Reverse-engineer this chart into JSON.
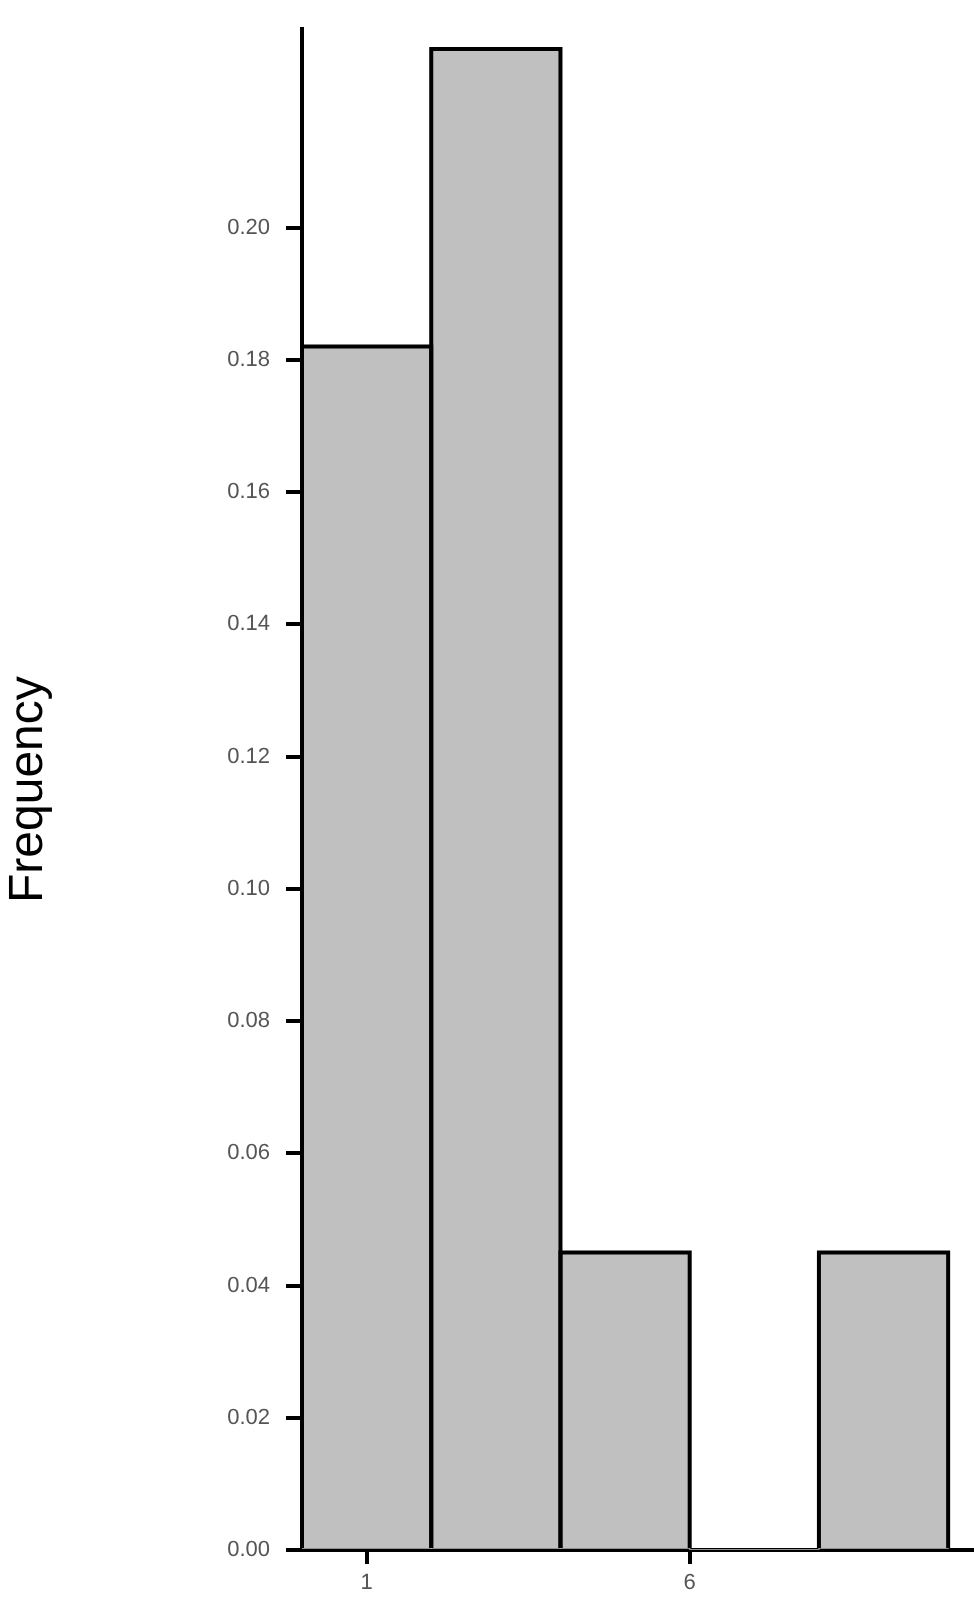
{
  "chart_data": {
    "type": "histogram",
    "ylabel": "Frequency",
    "bins": [
      0,
      2,
      4,
      6,
      8,
      10
    ],
    "values": [
      0.182,
      0.227,
      0.045,
      0,
      0.045
    ],
    "color": "#c0c0c0",
    "xlim": [
      0,
      10.4
    ],
    "xticks": [
      1,
      6
    ],
    "ylim": [
      0,
      0.23
    ],
    "yticks": [
      {
        "value": 0,
        "label": "0.00"
      },
      {
        "value": 0.02,
        "label": "0.02"
      },
      {
        "value": 0.04,
        "label": "0.04"
      },
      {
        "value": 0.06,
        "label": "0.06"
      },
      {
        "value": 0.08,
        "label": "0.08"
      },
      {
        "value": 0.1,
        "label": "0.10"
      },
      {
        "value": 0.12,
        "label": "0.12"
      },
      {
        "value": 0.14,
        "label": "0.14"
      },
      {
        "value": 0.16,
        "label": "0.16"
      },
      {
        "value": 0.18,
        "label": "0.18"
      },
      {
        "value": 0.2,
        "label": "0.20"
      }
    ],
    "grid": false,
    "legend": false
  }
}
